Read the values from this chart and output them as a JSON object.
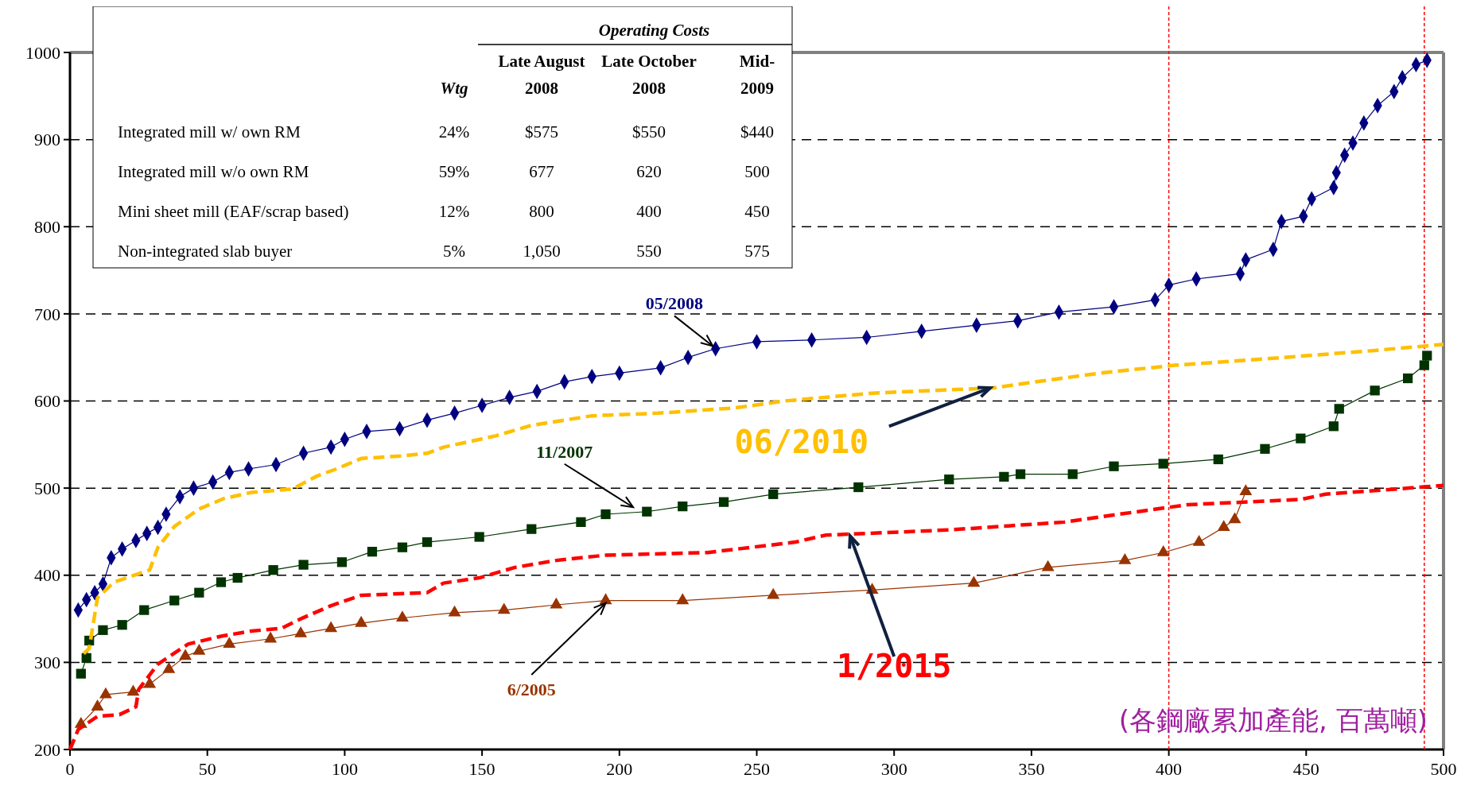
{
  "chart_data": {
    "type": "line",
    "xlim": [
      0,
      500
    ],
    "xticks": [
      0,
      50,
      100,
      150,
      200,
      250,
      300,
      350,
      400,
      450,
      500
    ],
    "ylim": [
      200,
      1000
    ],
    "yticks": [
      200,
      300,
      400,
      500,
      600,
      700,
      800,
      900,
      1000
    ],
    "grid": "y",
    "series": [
      {
        "name": "05/2008",
        "marker": "diamond",
        "line_style": "solid",
        "color": "#000080",
        "x": [
          3,
          6,
          9,
          12,
          15,
          19,
          24,
          28,
          32,
          35,
          40,
          45,
          52,
          58,
          65,
          75,
          85,
          95,
          100,
          108,
          120,
          130,
          140,
          150,
          160,
          170,
          180,
          190,
          200,
          215,
          225,
          235,
          250,
          270,
          290,
          310,
          330,
          345,
          360,
          380,
          395,
          400,
          410,
          426,
          428,
          438,
          441,
          449,
          452,
          460,
          461,
          464,
          467,
          471,
          476,
          482,
          485,
          490,
          494
        ],
        "values": [
          360,
          372,
          380,
          390,
          420,
          430,
          440,
          448,
          455,
          470,
          490,
          500,
          507,
          518,
          522,
          527,
          540,
          547,
          556,
          565,
          568,
          578,
          586,
          595,
          604,
          611,
          622,
          628,
          632,
          638,
          650,
          660,
          668,
          670,
          673,
          680,
          687,
          692,
          702,
          708,
          716,
          733,
          740,
          746,
          762,
          774,
          806,
          812,
          832,
          845,
          862,
          882,
          896,
          919,
          939,
          955,
          971,
          986,
          991
        ]
      },
      {
        "name": "11/2007",
        "marker": "square",
        "line_style": "solid",
        "color": "#003300",
        "x": [
          4,
          6,
          7,
          12,
          19,
          27,
          38,
          47,
          55,
          61,
          74,
          85,
          99,
          110,
          121,
          130,
          149,
          168,
          186,
          195,
          210,
          223,
          238,
          256,
          287,
          320,
          340,
          346,
          365,
          380,
          398,
          418,
          435,
          448,
          460,
          462,
          475,
          487,
          493,
          494
        ],
        "values": [
          287,
          305,
          325,
          337,
          343,
          360,
          371,
          380,
          392,
          397,
          406,
          412,
          415,
          427,
          432,
          438,
          444,
          453,
          461,
          470,
          473,
          479,
          484,
          493,
          501,
          510,
          513,
          516,
          516,
          525,
          528,
          533,
          545,
          557,
          571,
          591,
          612,
          626,
          641,
          652
        ]
      },
      {
        "name": "6/2005",
        "marker": "triangle",
        "line_style": "solid",
        "color": "#993300",
        "x": [
          4,
          10,
          13,
          23,
          29,
          36,
          42,
          47,
          58,
          73,
          84,
          95,
          106,
          121,
          140,
          158,
          177,
          195,
          223,
          256,
          292,
          329,
          356,
          384,
          398,
          411,
          420,
          424,
          428
        ],
        "values": [
          229,
          249,
          263,
          266,
          275,
          292,
          307,
          313,
          321,
          327,
          333,
          339,
          345,
          351,
          357,
          360,
          366,
          371,
          371,
          377,
          383,
          391,
          409,
          417,
          426,
          438,
          455,
          464,
          496
        ]
      },
      {
        "name": "06/2010",
        "marker": "none",
        "line_style": "dashed",
        "color": "#ffc000",
        "x": [
          5,
          7,
          10,
          16,
          29,
          32,
          38,
          47,
          56,
          66,
          81,
          90,
          97,
          106,
          121,
          130,
          136,
          155,
          168,
          190,
          214,
          242,
          260,
          292,
          336,
          354,
          375,
          402,
          438,
          475,
          500
        ],
        "values": [
          310,
          316,
          374,
          392,
          406,
          432,
          456,
          476,
          488,
          495,
          499,
          514,
          522,
          534,
          537,
          540,
          547,
          560,
          572,
          583,
          586,
          592,
          600,
          609,
          615,
          623,
          632,
          641,
          649,
          658,
          665
        ]
      },
      {
        "name": "1/2015",
        "marker": "none",
        "line_style": "dashed",
        "color": "#ff0000",
        "x": [
          0,
          3,
          10,
          18,
          24,
          25,
          32,
          43,
          55,
          66,
          77,
          84,
          95,
          106,
          130,
          136,
          149,
          162,
          177,
          195,
          232,
          264,
          275,
          320,
          362,
          375,
          407,
          448,
          457,
          500
        ],
        "values": [
          200,
          223,
          238,
          240,
          249,
          269,
          298,
          321,
          330,
          336,
          339,
          350,
          365,
          377,
          380,
          391,
          397,
          409,
          417,
          423,
          426,
          438,
          446,
          452,
          461,
          467,
          481,
          487,
          493,
          503
        ]
      }
    ],
    "ref_lines": [
      {
        "axis": "x",
        "value": 400,
        "color": "#ff0000",
        "line_style": "dashed"
      },
      {
        "axis": "x",
        "value": 493,
        "color": "#ff0000",
        "line_style": "dashed"
      }
    ],
    "annotations": [
      "Operating Costs",
      "Wtg",
      "Late August\n2008",
      "Late October\n2008",
      "Mid-\n2009",
      "Integrated mill w/ own RM",
      "24%",
      "$575",
      "$550",
      "$440",
      "Integrated mill w/o own RM",
      "59%",
      "677",
      "620",
      "500",
      "Mini sheet mill (EAF/scrap based)",
      "12%",
      "800",
      "400",
      "450",
      "Non-integrated slab buyer",
      "5%",
      "1,050",
      "550",
      "575",
      "(各鋼廠累加產能, 百萬噸)"
    ]
  }
}
